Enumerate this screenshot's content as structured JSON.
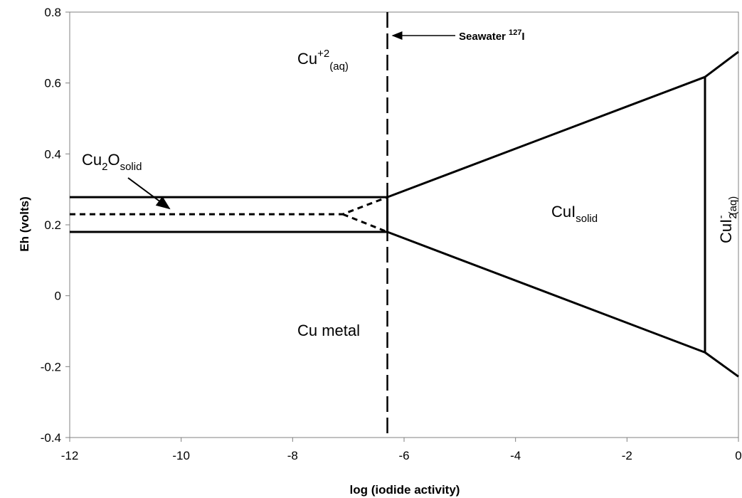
{
  "chart_data": {
    "type": "line",
    "title": "",
    "xlabel": "log (iodide activity)",
    "ylabel": "Eh (volts)",
    "xlim": [
      -12,
      0
    ],
    "ylim": [
      -0.4,
      0.8
    ],
    "x_ticks": [
      -12,
      -10,
      -8,
      -6,
      -4,
      -2,
      0
    ],
    "y_ticks": [
      -0.4,
      -0.2,
      0,
      0.2,
      0.4,
      0.6,
      0.8
    ],
    "x_tick_labels": [
      "-12",
      "-10",
      "-8",
      "-6",
      "-4",
      "-2",
      "0"
    ],
    "y_tick_labels": [
      "-0.4",
      "-0.2",
      "0",
      "0.2",
      "0.4",
      "0.6",
      "0.8"
    ],
    "grid": false,
    "boundaries": [
      {
        "id": "cu2o-upper",
        "style": "solid",
        "x": [
          -12,
          -6.3
        ],
        "y": [
          0.278,
          0.278
        ]
      },
      {
        "id": "cu2o-lower",
        "style": "solid",
        "x": [
          -12,
          -6.3
        ],
        "y": [
          0.18,
          0.18
        ]
      },
      {
        "id": "cu2o-short-vertical",
        "style": "solid",
        "x": [
          -6.3,
          -6.3
        ],
        "y": [
          0.18,
          0.278
        ]
      },
      {
        "id": "cui-upper",
        "style": "solid",
        "x": [
          -6.3,
          -0.6
        ],
        "y": [
          0.278,
          0.617
        ]
      },
      {
        "id": "cui-lower",
        "style": "solid",
        "x": [
          -6.3,
          -0.6
        ],
        "y": [
          0.18,
          -0.16
        ]
      },
      {
        "id": "cui-right",
        "style": "solid",
        "x": [
          -0.6,
          -0.6
        ],
        "y": [
          0.617,
          -0.16
        ]
      },
      {
        "id": "cui2-upper",
        "style": "solid",
        "x": [
          -0.6,
          0
        ],
        "y": [
          0.617,
          0.688
        ]
      },
      {
        "id": "cui2-lower",
        "style": "solid",
        "x": [
          -0.6,
          0
        ],
        "y": [
          -0.16,
          -0.228
        ]
      },
      {
        "id": "metastable-dashed",
        "style": "dashed",
        "x": [
          -12,
          -7.1,
          -6.3
        ],
        "y": [
          0.23,
          0.23,
          0.278
        ]
      },
      {
        "id": "metastable-dashed-lower",
        "style": "dashed",
        "x": [
          -7.1,
          -6.3
        ],
        "y": [
          0.23,
          0.18
        ]
      }
    ],
    "seawater_line": {
      "x": -6.3,
      "y": [
        -0.4,
        0.8
      ],
      "style": "long-dash"
    },
    "annotations": [
      {
        "id": "seawater",
        "text": "Seawater ",
        "sup": "127",
        "suffix": "I"
      }
    ],
    "regions": [
      {
        "id": "cu2-aq",
        "base": "Cu",
        "sup": "+2",
        "sub": "(aq)"
      },
      {
        "id": "cu2o-solid",
        "base": "Cu",
        "sub1": "2",
        "mid": "O",
        "sub": "solid"
      },
      {
        "id": "cui-solid",
        "base": "CuI",
        "sub": "solid"
      },
      {
        "id": "cui2-aq",
        "base": "CuI",
        "sub": "2",
        "sup": "-",
        "sub2": "(aq)"
      },
      {
        "id": "cu-metal",
        "base": "Cu metal"
      }
    ]
  }
}
